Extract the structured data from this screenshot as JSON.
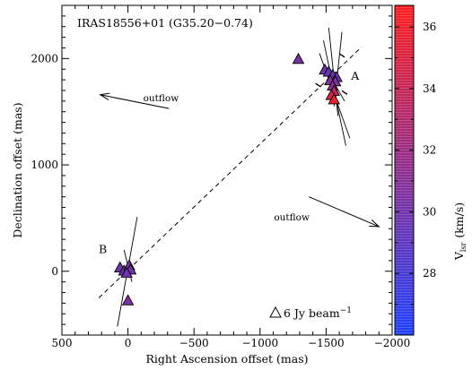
{
  "chart_data": {
    "type": "scatter",
    "title": "IRAS18556+01 (G35.20−0.74)",
    "xlabel": "Right Ascension offset (mas)",
    "ylabel": "Declination offset (mas)",
    "xlim": [
      500,
      -2000
    ],
    "ylim": [
      -600,
      2500
    ],
    "xticks": [
      500,
      0,
      -500,
      -1000,
      -1500,
      -2000
    ],
    "xtick_labels": [
      "500",
      "0",
      "−500",
      "−1000",
      "−1500",
      "−2000"
    ],
    "yticks": [
      0,
      1000,
      2000
    ],
    "ytick_labels": [
      "0",
      "1000",
      "2000"
    ],
    "grid": false,
    "colorbar": {
      "label": "V",
      "label_sub": "lsr",
      "label_unit": "(km/s)",
      "range": [
        26.0,
        36.7
      ],
      "ticks": [
        28,
        30,
        32,
        34,
        36
      ],
      "tick_labels": [
        "28",
        "30",
        "32",
        "34",
        "36"
      ],
      "colormap": [
        "#1e40ff",
        "#ff1e1e"
      ]
    },
    "points": [
      {
        "x": -1290,
        "y": 2000,
        "v": 30.2
      },
      {
        "x": -1490,
        "y": 1900,
        "v": 29.8
      },
      {
        "x": -1520,
        "y": 1880,
        "v": 29.6
      },
      {
        "x": -1550,
        "y": 1850,
        "v": 30.0
      },
      {
        "x": -1580,
        "y": 1830,
        "v": 29.5
      },
      {
        "x": -1530,
        "y": 1800,
        "v": 30.5
      },
      {
        "x": -1570,
        "y": 1790,
        "v": 30.8
      },
      {
        "x": -1550,
        "y": 1750,
        "v": 31.0
      },
      {
        "x": -1560,
        "y": 1700,
        "v": 33.5
      },
      {
        "x": -1540,
        "y": 1660,
        "v": 35.0
      },
      {
        "x": -1560,
        "y": 1620,
        "v": 35.8
      },
      {
        "x": 60,
        "y": 40,
        "v": 30.0
      },
      {
        "x": 30,
        "y": 10,
        "v": 29.5
      },
      {
        "x": -10,
        "y": 60,
        "v": 30.5
      },
      {
        "x": -20,
        "y": 20,
        "v": 30.2
      },
      {
        "x": 10,
        "y": -10,
        "v": 29.8
      },
      {
        "x": 0,
        "y": -270,
        "v": 30.5
      }
    ],
    "sticks": [
      {
        "x1": -1520,
        "y1": 2290,
        "x2": -1590,
        "y2": 1460
      },
      {
        "x1": -1480,
        "y1": 2170,
        "x2": -1650,
        "y2": 1180
      },
      {
        "x1": -1450,
        "y1": 2050,
        "x2": -1680,
        "y2": 1250
      },
      {
        "x1": -1620,
        "y1": 2250,
        "x2": -1560,
        "y2": 1550
      },
      {
        "x1": -1500,
        "y1": 1900,
        "x2": -1640,
        "y2": 1600
      },
      {
        "x1": -70,
        "y1": 510,
        "x2": 80,
        "y2": -520
      },
      {
        "x1": 30,
        "y1": 200,
        "x2": -30,
        "y2": -100
      }
    ],
    "jet_axis": {
      "x1": 220,
      "y1": -250,
      "x2": -1770,
      "y2": 2110
    },
    "marker_ticks": [
      {
        "x": -1440,
        "y": 1750
      },
      {
        "x": -1620,
        "y": 2030
      },
      {
        "x": -1640,
        "y": 1680
      }
    ],
    "arrows": [
      {
        "label": "outflow",
        "x1": -310,
        "y1": 1530,
        "x2": 210,
        "y2": 1660,
        "lx": -250,
        "ly": 1600
      },
      {
        "label": "outflow",
        "x1": -1370,
        "y1": 700,
        "x2": -1900,
        "y2": 420,
        "lx": -1240,
        "ly": 480
      }
    ],
    "annotations": [
      {
        "text": "A",
        "x": -1720,
        "y": 1800
      },
      {
        "text": "B",
        "x": 190,
        "y": 170
      }
    ],
    "legend": {
      "position": "bottom-right",
      "text": "6 Jy beam",
      "superscript": "−1",
      "symbol": "triangle"
    }
  }
}
